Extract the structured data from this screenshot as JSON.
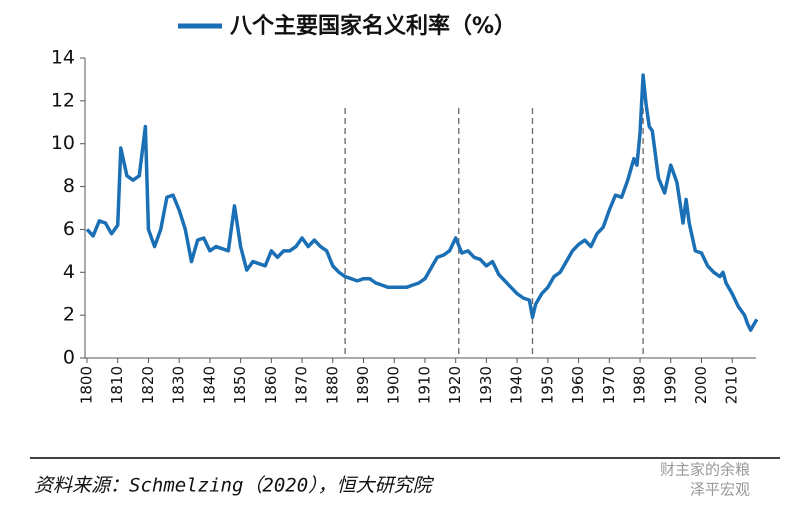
{
  "chart_data": {
    "type": "line",
    "series": [
      {
        "name": "八个主要国家名义利率（%）",
        "color": "#1a6fb5",
        "x": [
          1800,
          1802,
          1804,
          1806,
          1808,
          1810,
          1811,
          1813,
          1815,
          1817,
          1819,
          1820,
          1822,
          1824,
          1826,
          1828,
          1830,
          1832,
          1834,
          1836,
          1838,
          1840,
          1842,
          1844,
          1846,
          1848,
          1850,
          1852,
          1854,
          1856,
          1858,
          1860,
          1862,
          1864,
          1866,
          1868,
          1870,
          1872,
          1874,
          1876,
          1878,
          1880,
          1882,
          1884,
          1886,
          1888,
          1890,
          1892,
          1894,
          1896,
          1898,
          1900,
          1902,
          1904,
          1906,
          1908,
          1910,
          1912,
          1914,
          1916,
          1918,
          1920,
          1922,
          1924,
          1926,
          1928,
          1930,
          1932,
          1934,
          1936,
          1938,
          1940,
          1942,
          1944,
          1945,
          1946,
          1948,
          1950,
          1952,
          1954,
          1956,
          1958,
          1960,
          1962,
          1964,
          1966,
          1968,
          1970,
          1972,
          1974,
          1976,
          1978,
          1979,
          1980,
          1981,
          1982,
          1983,
          1984,
          1986,
          1988,
          1990,
          1992,
          1994,
          1995,
          1996,
          1998,
          2000,
          2002,
          2004,
          2006,
          2007,
          2008,
          2010,
          2012,
          2014,
          2015,
          2016,
          2018
        ],
        "values": [
          6.0,
          5.7,
          6.4,
          6.3,
          5.8,
          6.2,
          9.8,
          8.5,
          8.3,
          8.5,
          10.8,
          6.0,
          5.2,
          6.0,
          7.5,
          7.6,
          6.9,
          6.0,
          4.5,
          5.5,
          5.6,
          5.0,
          5.2,
          5.1,
          5.0,
          7.1,
          5.2,
          4.1,
          4.5,
          4.4,
          4.3,
          5.0,
          4.7,
          5.0,
          5.0,
          5.2,
          5.6,
          5.2,
          5.5,
          5.2,
          5.0,
          4.3,
          4.0,
          3.8,
          3.7,
          3.6,
          3.7,
          3.7,
          3.5,
          3.4,
          3.3,
          3.3,
          3.3,
          3.3,
          3.4,
          3.5,
          3.7,
          4.2,
          4.7,
          4.8,
          5.0,
          5.6,
          4.9,
          5.0,
          4.7,
          4.6,
          4.3,
          4.5,
          3.9,
          3.6,
          3.3,
          3.0,
          2.8,
          2.7,
          1.9,
          2.5,
          3.0,
          3.3,
          3.8,
          4.0,
          4.5,
          5.0,
          5.3,
          5.5,
          5.2,
          5.8,
          6.1,
          6.9,
          7.6,
          7.5,
          8.3,
          9.3,
          9.0,
          10.5,
          13.2,
          11.8,
          10.8,
          10.6,
          8.4,
          7.7,
          9.0,
          8.2,
          6.3,
          7.4,
          6.3,
          5.0,
          4.9,
          4.3,
          4.0,
          3.8,
          4.0,
          3.5,
          3.0,
          2.4,
          2.0,
          1.6,
          1.3,
          1.8
        ]
      }
    ],
    "xlim": [
      1800,
      2021
    ],
    "xticks": [
      1800,
      1810,
      1820,
      1830,
      1840,
      1850,
      1860,
      1870,
      1880,
      1890,
      1900,
      1910,
      1920,
      1930,
      1940,
      1950,
      1960,
      1970,
      1980,
      1990,
      2000,
      2010
    ],
    "ylim": [
      0,
      14
    ],
    "yticks": [
      0,
      2,
      4,
      6,
      8,
      10,
      12,
      14
    ],
    "reference_lines": [
      1884,
      1921,
      1945,
      1981
    ],
    "source": "资料来源：Schmelzing（2020），恒大研究院",
    "watermark": [
      "财主家的余粮",
      "泽平宏观"
    ]
  }
}
